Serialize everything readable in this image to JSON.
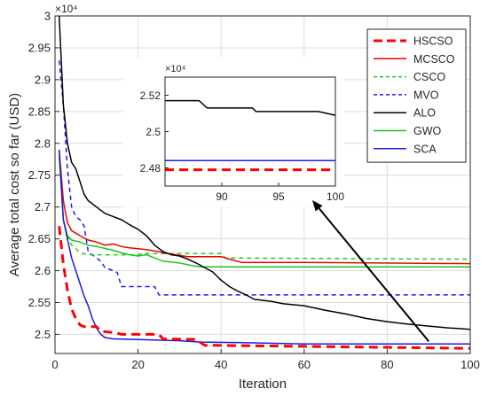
{
  "chart_data": [
    {
      "type": "line",
      "xlabel": "Iteration",
      "ylabel": "Average total cost so far (USD)",
      "exponent_label": "×10⁴",
      "xlim": [
        0,
        100
      ],
      "ylim": [
        2.47,
        3.0
      ],
      "xticks": [
        0,
        20,
        40,
        60,
        80,
        100
      ],
      "yticks": [
        2.5,
        2.55,
        2.6,
        2.65,
        2.7,
        2.75,
        2.8,
        2.85,
        2.9,
        2.95,
        3
      ],
      "ytick_labels": [
        "2.5",
        "2.55",
        "2.6",
        "2.65",
        "2.7",
        "2.75",
        "2.8",
        "2.85",
        "2.9",
        "2.95",
        "3"
      ],
      "grid": true,
      "legend_position": "top-right",
      "series": [
        {
          "name": "HSCSO",
          "color": "#ff0000",
          "style": "dashed-thick",
          "points": [
            [
              1,
              2.67
            ],
            [
              2,
              2.61
            ],
            [
              3,
              2.57
            ],
            [
              4,
              2.54
            ],
            [
              5,
              2.525
            ],
            [
              6,
              2.515
            ],
            [
              7,
              2.512
            ],
            [
              10,
              2.512
            ],
            [
              11,
              2.505
            ],
            [
              15,
              2.502
            ],
            [
              16,
              2.5
            ],
            [
              25,
              2.5
            ],
            [
              26,
              2.493
            ],
            [
              34,
              2.492
            ],
            [
              36,
              2.483
            ],
            [
              100,
              2.478
            ]
          ]
        },
        {
          "name": "MCSCO",
          "color": "#ee0000",
          "style": "solid",
          "points": [
            [
              1,
              2.79
            ],
            [
              2,
              2.71
            ],
            [
              3,
              2.675
            ],
            [
              4,
              2.663
            ],
            [
              6,
              2.655
            ],
            [
              8,
              2.648
            ],
            [
              10,
              2.645
            ],
            [
              12,
              2.64
            ],
            [
              14,
              2.642
            ],
            [
              16,
              2.638
            ],
            [
              18,
              2.636
            ],
            [
              22,
              2.633
            ],
            [
              25,
              2.63
            ],
            [
              26,
              2.628
            ],
            [
              30,
              2.624
            ],
            [
              32,
              2.622
            ],
            [
              40,
              2.622
            ],
            [
              42,
              2.618
            ],
            [
              45,
              2.613
            ],
            [
              60,
              2.613
            ],
            [
              100,
              2.611
            ]
          ]
        },
        {
          "name": "CSCO",
          "color": "#22cc22",
          "style": "dashed",
          "points": [
            [
              1,
              2.78
            ],
            [
              2,
              2.68
            ],
            [
              3,
              2.655
            ],
            [
              4,
              2.64
            ],
            [
              5,
              2.635
            ],
            [
              6,
              2.628
            ],
            [
              8,
              2.625
            ],
            [
              20,
              2.625
            ],
            [
              21,
              2.627
            ],
            [
              40,
              2.627
            ],
            [
              41,
              2.62
            ],
            [
              100,
              2.618
            ]
          ]
        },
        {
          "name": "MVO",
          "color": "#1a1aff",
          "style": "dashed",
          "points": [
            [
              1,
              2.93
            ],
            [
              2,
              2.86
            ],
            [
              3,
              2.76
            ],
            [
              4,
              2.7
            ],
            [
              5,
              2.685
            ],
            [
              6,
              2.68
            ],
            [
              7,
              2.67
            ],
            [
              8,
              2.63
            ],
            [
              9,
              2.625
            ],
            [
              10,
              2.62
            ],
            [
              11,
              2.615
            ],
            [
              12,
              2.605
            ],
            [
              14,
              2.6
            ],
            [
              15,
              2.597
            ],
            [
              16,
              2.575
            ],
            [
              24,
              2.575
            ],
            [
              25,
              2.562
            ],
            [
              100,
              2.562
            ]
          ]
        },
        {
          "name": "ALO",
          "color": "#000000",
          "style": "solid",
          "points": [
            [
              1,
              3.0
            ],
            [
              2,
              2.86
            ],
            [
              3,
              2.8
            ],
            [
              4,
              2.77
            ],
            [
              5,
              2.76
            ],
            [
              6,
              2.74
            ],
            [
              7,
              2.72
            ],
            [
              8,
              2.71
            ],
            [
              10,
              2.7
            ],
            [
              12,
              2.69
            ],
            [
              14,
              2.685
            ],
            [
              16,
              2.68
            ],
            [
              18,
              2.672
            ],
            [
              20,
              2.665
            ],
            [
              22,
              2.655
            ],
            [
              24,
              2.64
            ],
            [
              26,
              2.63
            ],
            [
              28,
              2.625
            ],
            [
              30,
              2.623
            ],
            [
              32,
              2.618
            ],
            [
              34,
              2.612
            ],
            [
              36,
              2.605
            ],
            [
              38,
              2.598
            ],
            [
              40,
              2.585
            ],
            [
              42,
              2.575
            ],
            [
              44,
              2.568
            ],
            [
              46,
              2.562
            ],
            [
              48,
              2.555
            ],
            [
              52,
              2.552
            ],
            [
              55,
              2.548
            ],
            [
              60,
              2.545
            ],
            [
              65,
              2.538
            ],
            [
              70,
              2.532
            ],
            [
              75,
              2.525
            ],
            [
              80,
              2.52
            ],
            [
              85,
              2.516
            ],
            [
              90,
              2.513
            ],
            [
              95,
              2.51
            ],
            [
              100,
              2.508
            ]
          ]
        },
        {
          "name": "GWO",
          "color": "#1fc41f",
          "style": "solid",
          "points": [
            [
              1,
              2.78
            ],
            [
              2,
              2.68
            ],
            [
              3,
              2.655
            ],
            [
              4,
              2.648
            ],
            [
              6,
              2.645
            ],
            [
              8,
              2.64
            ],
            [
              10,
              2.638
            ],
            [
              12,
              2.635
            ],
            [
              14,
              2.632
            ],
            [
              16,
              2.628
            ],
            [
              18,
              2.625
            ],
            [
              20,
              2.623
            ],
            [
              22,
              2.625
            ],
            [
              24,
              2.62
            ],
            [
              26,
              2.615
            ],
            [
              30,
              2.612
            ],
            [
              33,
              2.608
            ],
            [
              35,
              2.606
            ],
            [
              100,
              2.606
            ]
          ]
        },
        {
          "name": "SCA",
          "color": "#1a1adf",
          "style": "solid",
          "points": [
            [
              1,
              2.79
            ],
            [
              2,
              2.68
            ],
            [
              3,
              2.65
            ],
            [
              4,
              2.62
            ],
            [
              5,
              2.6
            ],
            [
              6,
              2.58
            ],
            [
              7,
              2.56
            ],
            [
              8,
              2.545
            ],
            [
              9,
              2.525
            ],
            [
              10,
              2.51
            ],
            [
              11,
              2.5
            ],
            [
              12,
              2.495
            ],
            [
              14,
              2.493
            ],
            [
              20,
              2.492
            ],
            [
              30,
              2.49
            ],
            [
              35,
              2.488
            ],
            [
              45,
              2.487
            ],
            [
              60,
              2.485
            ],
            [
              100,
              2.485
            ]
          ]
        }
      ]
    },
    {
      "type": "line",
      "role": "inset",
      "exponent_label": "×10⁴",
      "xlim": [
        85,
        100
      ],
      "ylim": [
        2.47,
        2.53
      ],
      "xticks": [
        90,
        95,
        100
      ],
      "yticks": [
        2.48,
        2.5,
        2.52
      ],
      "ytick_labels": [
        "2.48",
        "2.5",
        "2.52"
      ],
      "grid": false,
      "series": [
        {
          "name": "ALO",
          "color": "#000000",
          "style": "solid",
          "points": [
            [
              85,
              2.517
            ],
            [
              88,
              2.517
            ],
            [
              88.7,
              2.513
            ],
            [
              92.7,
              2.513
            ],
            [
              93,
              2.511
            ],
            [
              98.5,
              2.511
            ],
            [
              100,
              2.509
            ]
          ]
        },
        {
          "name": "SCA",
          "color": "#1a1aff",
          "style": "solid",
          "points": [
            [
              85,
              2.484
            ],
            [
              100,
              2.484
            ]
          ]
        },
        {
          "name": "HSCSO",
          "color": "#ff0000",
          "style": "dashed-thick",
          "points": [
            [
              85,
              2.479
            ],
            [
              100,
              2.479
            ]
          ]
        }
      ]
    }
  ]
}
